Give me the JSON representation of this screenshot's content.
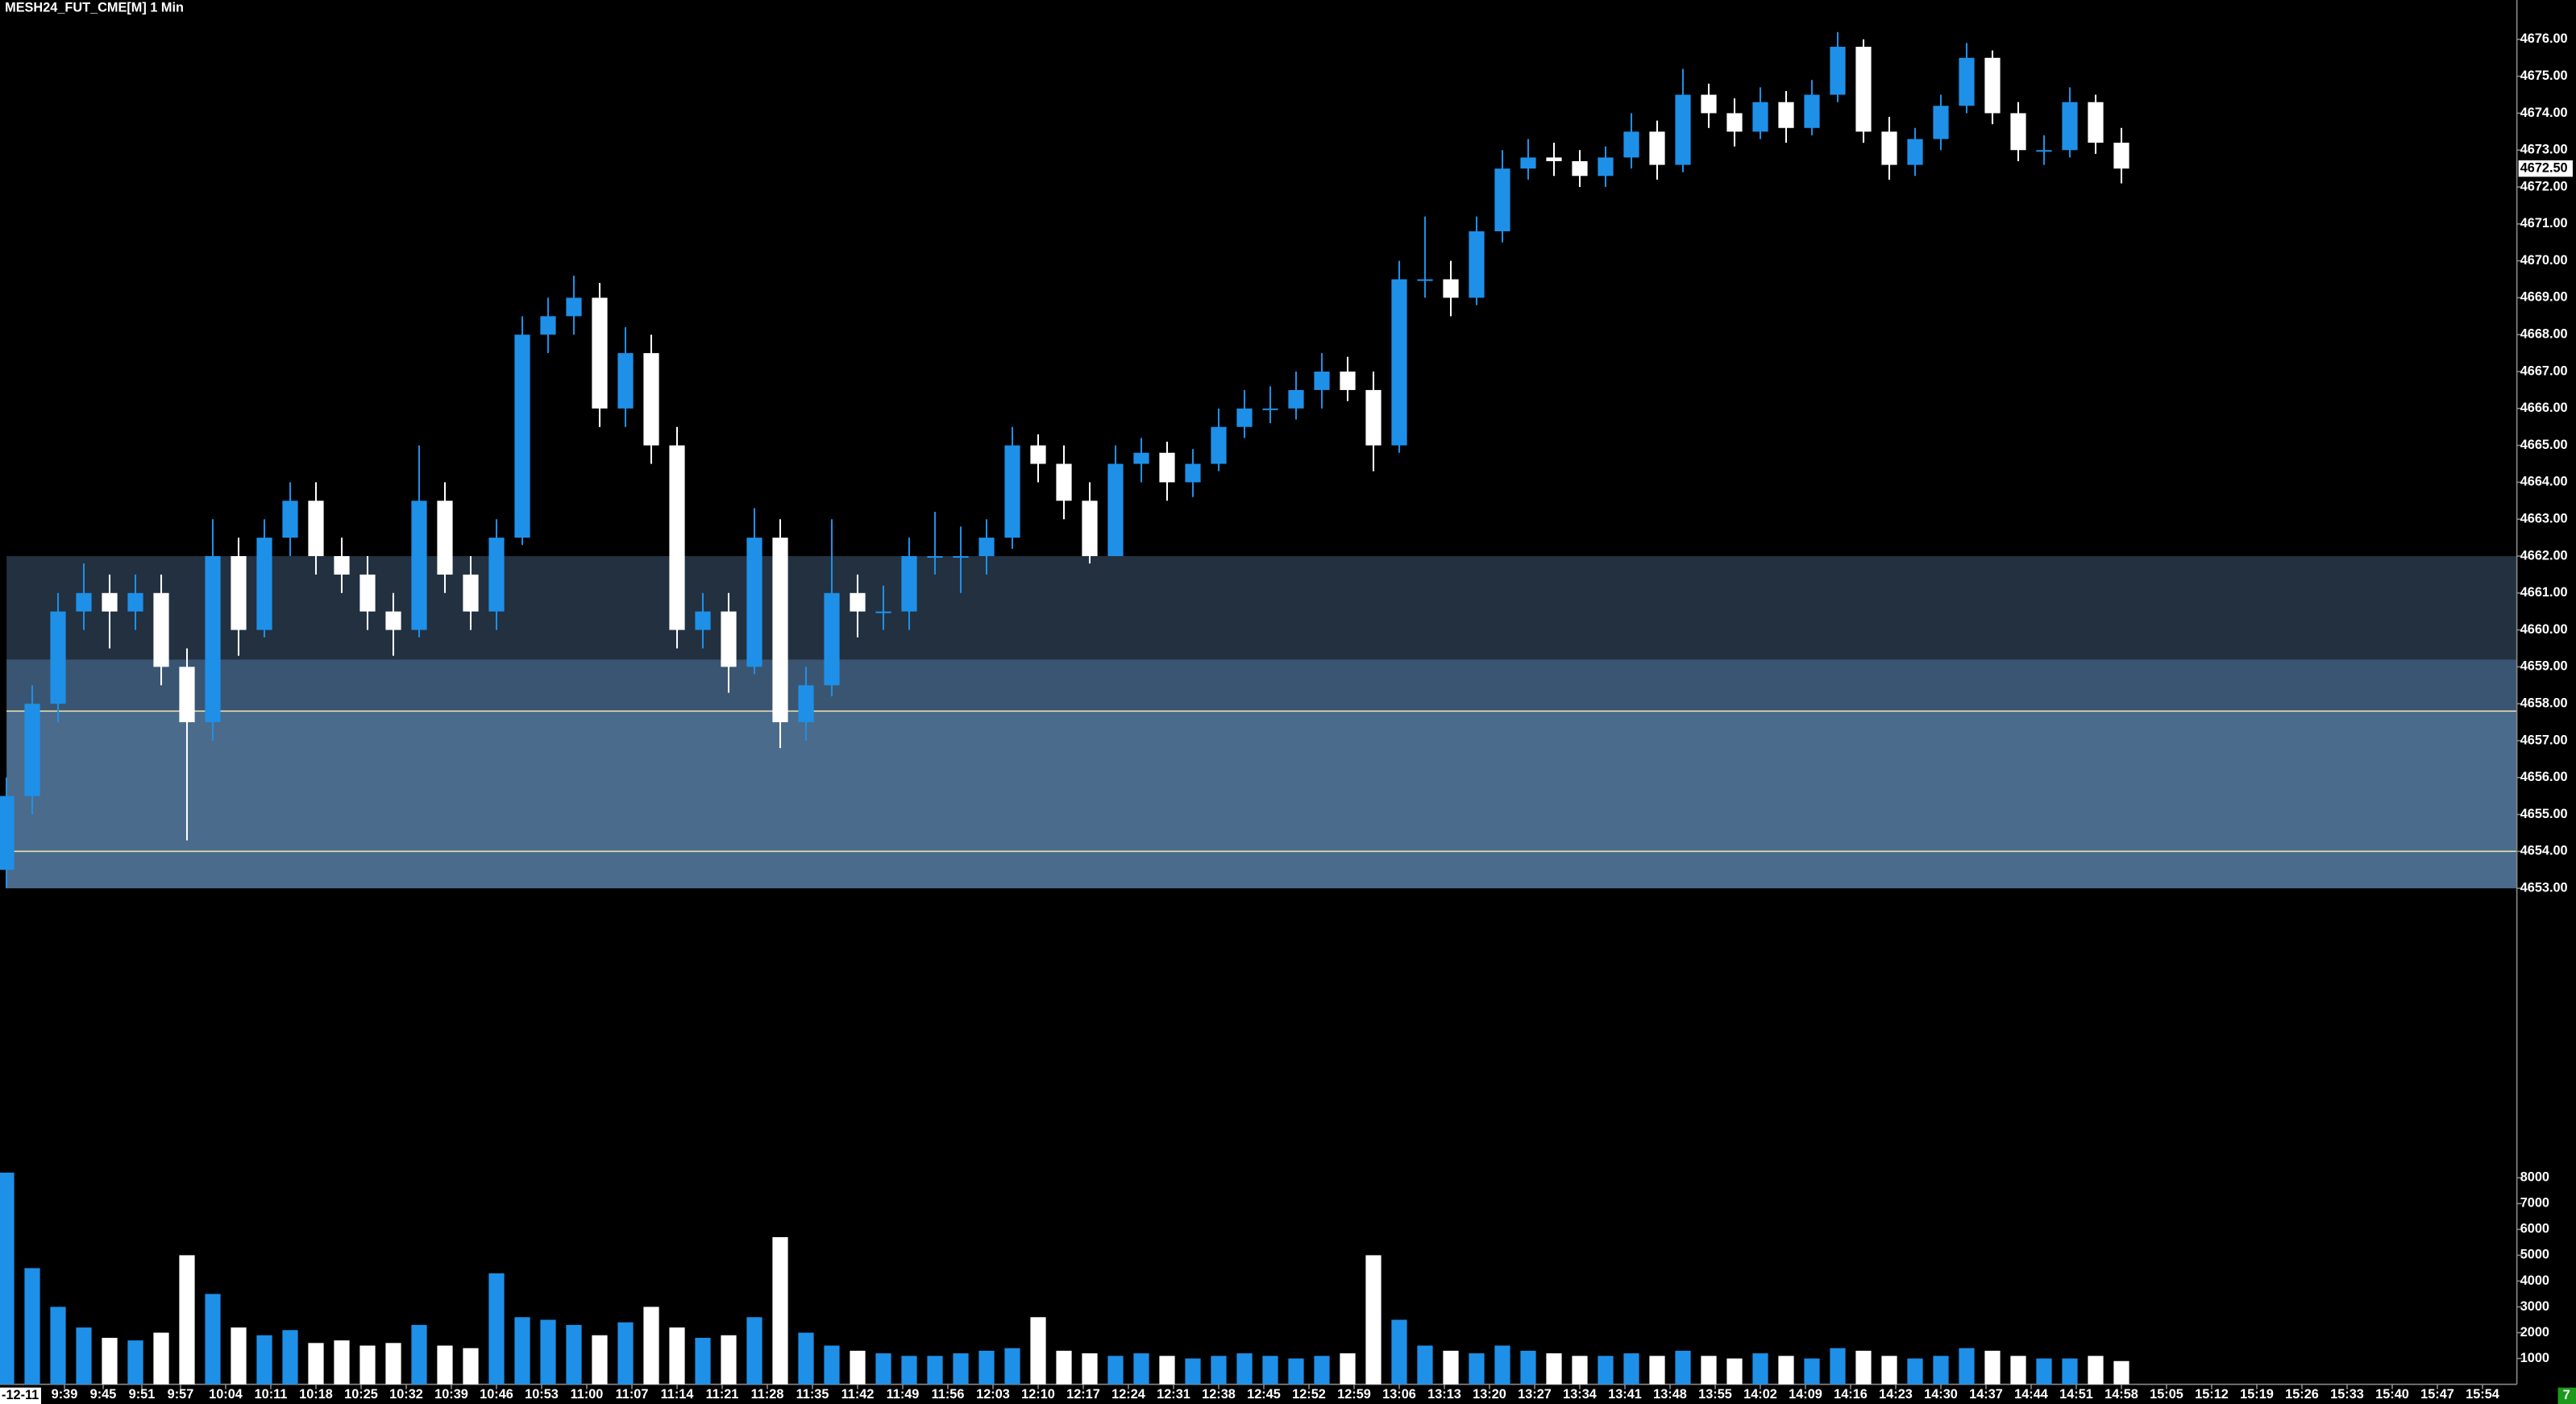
{
  "chart_data": {
    "type": "candlestick",
    "title": "MESH24_FUT_CME[M] 1 Min",
    "date_label": "-12-11",
    "corner_label": "7",
    "up_color": "#1e90e8",
    "down_color": "#ffffff",
    "x": [
      570,
      574,
      578,
      582,
      586,
      590,
      594,
      598,
      602,
      606,
      610,
      614,
      618,
      622,
      626,
      630,
      634,
      638,
      642,
      646,
      650,
      654,
      658,
      662,
      666,
      670,
      674,
      678,
      682,
      686,
      690,
      694,
      698,
      702,
      706,
      710,
      714,
      718,
      722,
      726,
      730,
      734,
      738,
      742,
      746,
      750,
      754,
      758,
      762,
      766,
      770,
      774,
      778,
      782,
      786,
      790,
      794,
      798,
      802,
      806,
      810,
      814,
      818,
      822,
      826,
      830,
      834,
      838,
      842,
      846,
      850,
      854,
      858,
      862,
      866,
      870,
      874,
      878,
      882,
      886,
      890,
      894,
      898
    ],
    "open": [
      4653.5,
      4655.5,
      4658,
      4660.5,
      4661,
      4660.5,
      4661,
      4659,
      4657.5,
      4662,
      4660,
      4662.5,
      4663.5,
      4662,
      4661.5,
      4660.5,
      4660,
      4663.5,
      4661.5,
      4660.5,
      4662.5,
      4668,
      4668.5,
      4669,
      4666,
      4667.5,
      4665,
      4660,
      4660.5,
      4659,
      4662.5,
      4657.5,
      4658.5,
      4661,
      4660.5,
      4660.5,
      4662,
      4662,
      4662,
      4662.5,
      4665,
      4664.5,
      4663.5,
      4662,
      4664.5,
      4664.8,
      4664,
      4664.5,
      4665.5,
      4666,
      4666,
      4666.5,
      4667,
      4666.5,
      4665,
      4669.5,
      4669.5,
      4669,
      4670.8,
      4672.5,
      4672.8,
      4672.7,
      4672.3,
      4672.8,
      4673.5,
      4672.6,
      4674.5,
      4674,
      4673.5,
      4674.3,
      4673.6,
      4674.5,
      4675.8,
      4673.5,
      4672.6,
      4673.3,
      4674.2,
      4675.5,
      4674,
      4673,
      4673,
      4674.3,
      4673.2
    ],
    "high": [
      4656,
      4658.5,
      4661,
      4661.8,
      4661.5,
      4661.5,
      4661.5,
      4659.5,
      4663,
      4662.5,
      4663,
      4664,
      4664,
      4662.5,
      4662,
      4661,
      4665,
      4664,
      4662,
      4663,
      4668.5,
      4669,
      4669.6,
      4669.4,
      4668.2,
      4668,
      4665.5,
      4661,
      4661,
      4663.3,
      4663,
      4659,
      4663,
      4661.5,
      4661.2,
      4662.5,
      4663.2,
      4662.8,
      4663,
      4665.5,
      4665.3,
      4665,
      4664,
      4665,
      4665.2,
      4665.1,
      4664.9,
      4666,
      4666.5,
      4666.6,
      4667,
      4667.5,
      4667.4,
      4667,
      4670,
      4671.2,
      4670,
      4671.2,
      4673,
      4673.3,
      4673.2,
      4673,
      4673.1,
      4674,
      4673.8,
      4675.2,
      4674.8,
      4674.4,
      4674.7,
      4674.6,
      4674.9,
      4676.2,
      4676,
      4673.9,
      4673.6,
      4674.5,
      4675.9,
      4675.7,
      4674.3,
      4673.4,
      4674.7,
      4674.5,
      4673.6
    ],
    "low": [
      4653,
      4655,
      4657.5,
      4660,
      4659.5,
      4660,
      4658.5,
      4654.3,
      4657,
      4659.3,
      4659.8,
      4662,
      4661.5,
      4661,
      4660,
      4659.3,
      4659.8,
      4661,
      4660,
      4660,
      4662.3,
      4667.5,
      4668,
      4665.5,
      4665.5,
      4664.5,
      4659.5,
      4659.5,
      4658.3,
      4658.8,
      4656.8,
      4657,
      4658.2,
      4659.8,
      4660,
      4660,
      4661.5,
      4661,
      4661.5,
      4662.2,
      4664,
      4663,
      4661.8,
      4662,
      4664,
      4663.5,
      4663.6,
      4664.3,
      4665.2,
      4665.6,
      4665.7,
      4666,
      4666.2,
      4664.3,
      4664.8,
      4669,
      4668.5,
      4668.8,
      4670.5,
      4672.2,
      4672.3,
      4672,
      4672,
      4672.5,
      4672.2,
      4672.4,
      4673.6,
      4673.1,
      4673.3,
      4673.2,
      4673.4,
      4674.3,
      4673.2,
      4672.2,
      4672.3,
      4673,
      4674,
      4673.7,
      4672.7,
      4672.6,
      4672.8,
      4672.9,
      4672.1
    ],
    "close": [
      4655.5,
      4658,
      4660.5,
      4661,
      4660.5,
      4661,
      4659,
      4657.5,
      4662,
      4660,
      4662.5,
      4663.5,
      4662,
      4661.5,
      4660.5,
      4660,
      4663.5,
      4661.5,
      4660.5,
      4662.5,
      4668,
      4668.5,
      4669,
      4666,
      4667.5,
      4665,
      4660,
      4660.5,
      4659,
      4662.5,
      4657.5,
      4658.5,
      4661,
      4660.5,
      4660.5,
      4662,
      4662,
      4662,
      4662.5,
      4665,
      4664.5,
      4663.5,
      4662,
      4664.5,
      4664.8,
      4664,
      4664.5,
      4665.5,
      4666,
      4666,
      4666.5,
      4667,
      4666.5,
      4665,
      4669.5,
      4669.5,
      4669,
      4670.8,
      4672.5,
      4672.8,
      4672.7,
      4672.3,
      4672.8,
      4673.5,
      4672.6,
      4674.5,
      4674,
      4673.5,
      4674.3,
      4673.6,
      4674.5,
      4675.8,
      4673.5,
      4672.6,
      4673.3,
      4674.2,
      4675.5,
      4674,
      4673,
      4673,
      4674.3,
      4673.2,
      4672.5
    ],
    "volume": [
      8200,
      4500,
      3000,
      2200,
      1800,
      1700,
      2000,
      5000,
      3500,
      2200,
      1900,
      2100,
      1600,
      1700,
      1500,
      1600,
      2300,
      1500,
      1400,
      4300,
      2600,
      2500,
      2300,
      1900,
      2400,
      3000,
      2200,
      1800,
      1900,
      2600,
      5700,
      2000,
      1500,
      1300,
      1200,
      1100,
      1100,
      1200,
      1300,
      1400,
      2600,
      1300,
      1200,
      1100,
      1200,
      1100,
      1000,
      1100,
      1200,
      1100,
      1000,
      1100,
      1200,
      5000,
      2500,
      1500,
      1300,
      1200,
      1500,
      1300,
      1200,
      1100,
      1100,
      1200,
      1100,
      1300,
      1100,
      1000,
      1200,
      1100,
      1000,
      1400,
      1300,
      1100,
      1000,
      1100,
      1400,
      1300,
      1100,
      1000,
      1000,
      1100,
      900
    ],
    "xlim": [
      569,
      959.2
    ],
    "xticks": [
      {
        "value": 579,
        "label": "9:39"
      },
      {
        "value": 585,
        "label": "9:45"
      },
      {
        "value": 591,
        "label": "9:51"
      },
      {
        "value": 597,
        "label": "9:57"
      },
      {
        "value": 604,
        "label": "10:04"
      },
      {
        "value": 611,
        "label": "10:11"
      },
      {
        "value": 618,
        "label": "10:18"
      },
      {
        "value": 625,
        "label": "10:25"
      },
      {
        "value": 632,
        "label": "10:32"
      },
      {
        "value": 639,
        "label": "10:39"
      },
      {
        "value": 646,
        "label": "10:46"
      },
      {
        "value": 653,
        "label": "10:53"
      },
      {
        "value": 660,
        "label": "11:00"
      },
      {
        "value": 667,
        "label": "11:07"
      },
      {
        "value": 674,
        "label": "11:14"
      },
      {
        "value": 681,
        "label": "11:21"
      },
      {
        "value": 688,
        "label": "11:28"
      },
      {
        "value": 695,
        "label": "11:35"
      },
      {
        "value": 702,
        "label": "11:42"
      },
      {
        "value": 709,
        "label": "11:49"
      },
      {
        "value": 716,
        "label": "11:56"
      },
      {
        "value": 723,
        "label": "12:03"
      },
      {
        "value": 730,
        "label": "12:10"
      },
      {
        "value": 737,
        "label": "12:17"
      },
      {
        "value": 744,
        "label": "12:24"
      },
      {
        "value": 751,
        "label": "12:31"
      },
      {
        "value": 758,
        "label": "12:38"
      },
      {
        "value": 765,
        "label": "12:45"
      },
      {
        "value": 772,
        "label": "12:52"
      },
      {
        "value": 779,
        "label": "12:59"
      },
      {
        "value": 786,
        "label": "13:06"
      },
      {
        "value": 793,
        "label": "13:13"
      },
      {
        "value": 800,
        "label": "13:20"
      },
      {
        "value": 807,
        "label": "13:27"
      },
      {
        "value": 814,
        "label": "13:34"
      },
      {
        "value": 821,
        "label": "13:41"
      },
      {
        "value": 828,
        "label": "13:48"
      },
      {
        "value": 835,
        "label": "13:55"
      },
      {
        "value": 842,
        "label": "14:02"
      },
      {
        "value": 849,
        "label": "14:09"
      },
      {
        "value": 856,
        "label": "14:16"
      },
      {
        "value": 863,
        "label": "14:23"
      },
      {
        "value": 870,
        "label": "14:30"
      },
      {
        "value": 877,
        "label": "14:37"
      },
      {
        "value": 884,
        "label": "14:44"
      },
      {
        "value": 891,
        "label": "14:51"
      },
      {
        "value": 898,
        "label": "14:58"
      },
      {
        "value": 905,
        "label": "15:05"
      },
      {
        "value": 912,
        "label": "15:12"
      },
      {
        "value": 919,
        "label": "15:19"
      },
      {
        "value": 926,
        "label": "15:26"
      },
      {
        "value": 933,
        "label": "15:33"
      },
      {
        "value": 940,
        "label": "15:40"
      },
      {
        "value": 947,
        "label": "15:47"
      },
      {
        "value": 954,
        "label": "15:54"
      }
    ],
    "ylim": [
      4646,
      4677
    ],
    "yticks": [
      {
        "value": 4653,
        "label": "4653.00"
      },
      {
        "value": 4654,
        "label": "4654.00"
      },
      {
        "value": 4655,
        "label": "4655.00"
      },
      {
        "value": 4656,
        "label": "4656.00"
      },
      {
        "value": 4657,
        "label": "4657.00"
      },
      {
        "value": 4658,
        "label": "4658.00"
      },
      {
        "value": 4659,
        "label": "4659.00"
      },
      {
        "value": 4660,
        "label": "4660.00"
      },
      {
        "value": 4661,
        "label": "4661.00"
      },
      {
        "value": 4662,
        "label": "4662.00"
      },
      {
        "value": 4663,
        "label": "4663.00"
      },
      {
        "value": 4664,
        "label": "4664.00"
      },
      {
        "value": 4665,
        "label": "4665.00"
      },
      {
        "value": 4666,
        "label": "4666.00"
      },
      {
        "value": 4667,
        "label": "4667.00"
      },
      {
        "value": 4668,
        "label": "4668.00"
      },
      {
        "value": 4669,
        "label": "4669.00"
      },
      {
        "value": 4670,
        "label": "4670.00"
      },
      {
        "value": 4671,
        "label": "4671.00"
      },
      {
        "value": 4672,
        "label": "4672.00"
      },
      {
        "value": 4673,
        "label": "4673.00"
      },
      {
        "value": 4674,
        "label": "4674.00"
      },
      {
        "value": 4675,
        "label": "4675.00"
      },
      {
        "value": 4676,
        "label": "4676.00"
      }
    ],
    "volume_ylim": [
      0,
      8200
    ],
    "volume_yticks": [
      1000,
      2000,
      3000,
      4000,
      5000,
      6000,
      7000,
      8000
    ],
    "last_price": {
      "value": 4672.5,
      "label": "4672.50"
    },
    "zones": [
      {
        "from": 4659.2,
        "to": 4662,
        "color": "#223040"
      },
      {
        "from": 4657.8,
        "to": 4659.2,
        "color": "#3a5571"
      },
      {
        "from": 4653,
        "to": 4657.8,
        "color": "#4a6b8c"
      }
    ],
    "levels": [
      4657.8,
      4654
    ],
    "level_color": "#e8e0b0"
  }
}
